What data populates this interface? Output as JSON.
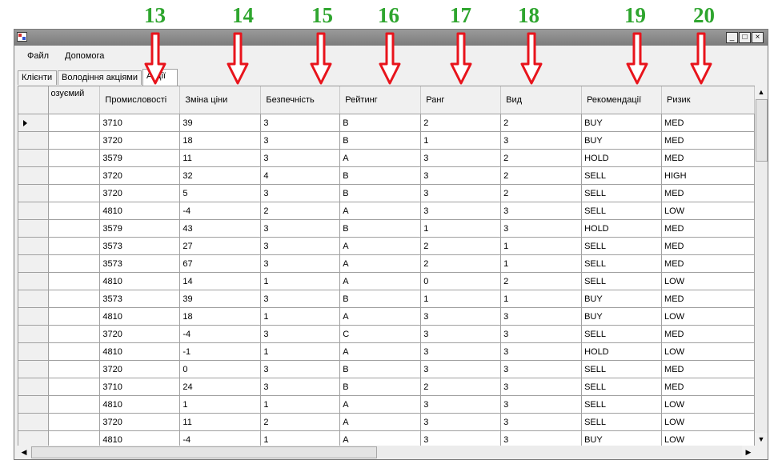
{
  "annotations": [
    "13",
    "14",
    "15",
    "16",
    "17",
    "18",
    "19",
    "20"
  ],
  "window": {
    "minimize": "_",
    "maximize": "□",
    "close": "×"
  },
  "menu": [
    "Файл",
    "Допомога"
  ],
  "tabs": [
    "Клієнти",
    "Володіння акціями",
    "Акції"
  ],
  "columns": [
    "озуємий",
    "Промисловості",
    "Зміна ціни",
    "Безпечність",
    "Рейтинг",
    "Ранг",
    "Вид",
    "Рекомендації",
    "Ризик"
  ],
  "rows": [
    [
      "",
      "3710",
      "39",
      "3",
      "B",
      "2",
      "2",
      "BUY",
      "MED"
    ],
    [
      "",
      "3720",
      "18",
      "3",
      "B",
      "1",
      "3",
      "BUY",
      "MED"
    ],
    [
      "",
      "3579",
      "11",
      "3",
      "A",
      "3",
      "2",
      "HOLD",
      "MED"
    ],
    [
      "",
      "3720",
      "32",
      "4",
      "B",
      "3",
      "2",
      "SELL",
      "HIGH"
    ],
    [
      "",
      "3720",
      "5",
      "3",
      "B",
      "3",
      "2",
      "SELL",
      "MED"
    ],
    [
      "",
      "4810",
      "-4",
      "2",
      "A",
      "3",
      "3",
      "SELL",
      "LOW"
    ],
    [
      "",
      "3579",
      "43",
      "3",
      "B",
      "1",
      "3",
      "HOLD",
      "MED"
    ],
    [
      "",
      "3573",
      "27",
      "3",
      "A",
      "2",
      "1",
      "SELL",
      "MED"
    ],
    [
      "",
      "3573",
      "67",
      "3",
      "A",
      "2",
      "1",
      "SELL",
      "MED"
    ],
    [
      "",
      "4810",
      "14",
      "1",
      "A",
      "0",
      "2",
      "SELL",
      "LOW"
    ],
    [
      "",
      "3573",
      "39",
      "3",
      "B",
      "1",
      "1",
      "BUY",
      "MED"
    ],
    [
      "",
      "4810",
      "18",
      "1",
      "A",
      "3",
      "3",
      "BUY",
      "LOW"
    ],
    [
      "",
      "3720",
      "-4",
      "3",
      "C",
      "3",
      "3",
      "SELL",
      "MED"
    ],
    [
      "",
      "4810",
      "-1",
      "1",
      "A",
      "3",
      "3",
      "HOLD",
      "LOW"
    ],
    [
      "",
      "3720",
      "0",
      "3",
      "B",
      "3",
      "3",
      "SELL",
      "MED"
    ],
    [
      "",
      "3710",
      "24",
      "3",
      "B",
      "2",
      "3",
      "SELL",
      "MED"
    ],
    [
      "",
      "4810",
      "1",
      "1",
      "A",
      "3",
      "3",
      "SELL",
      "LOW"
    ],
    [
      "",
      "3720",
      "11",
      "2",
      "A",
      "3",
      "3",
      "SELL",
      "LOW"
    ],
    [
      "",
      "4810",
      "-4",
      "1",
      "A",
      "3",
      "3",
      "BUY",
      "LOW"
    ]
  ],
  "colors": {
    "annotation": "#2ea52e",
    "arrow": "#e8141c"
  }
}
